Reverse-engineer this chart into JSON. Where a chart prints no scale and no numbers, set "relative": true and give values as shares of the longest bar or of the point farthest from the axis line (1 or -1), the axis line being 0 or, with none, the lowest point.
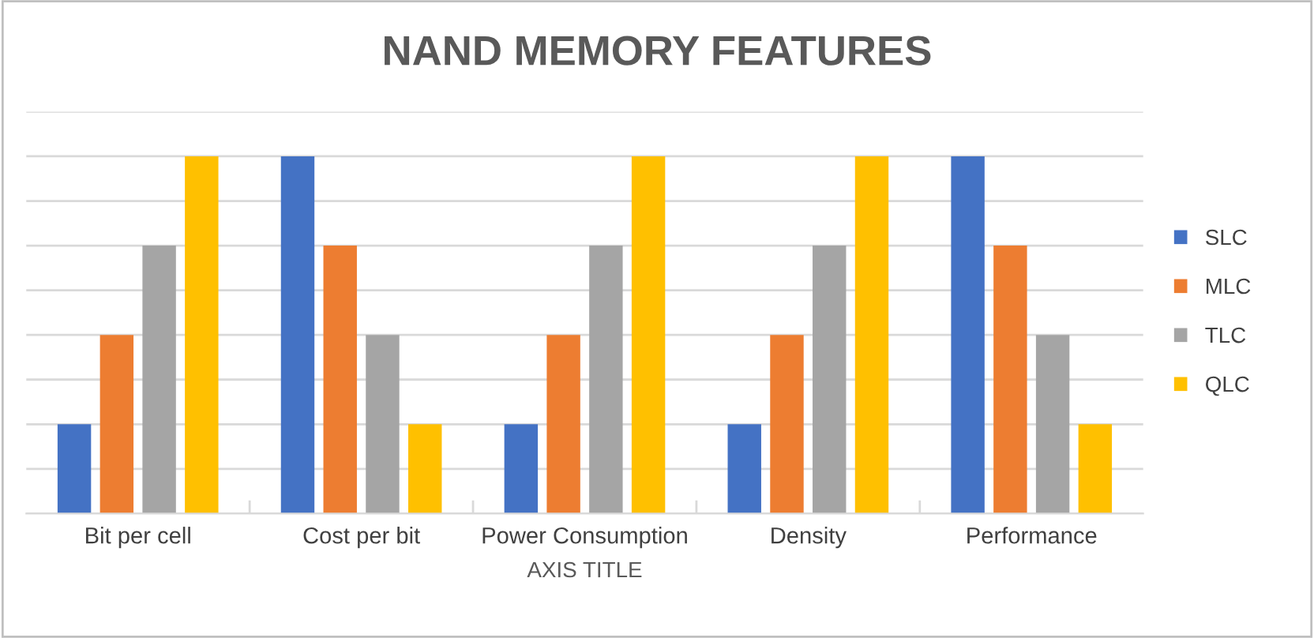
{
  "chart_data": {
    "type": "bar",
    "title": "NAND MEMORY FEATURES",
    "xlabel": "AXIS TITLE",
    "categories": [
      "Bit per cell",
      "Cost per bit",
      "Power Consumption",
      "Density",
      "Performance"
    ],
    "series": [
      {
        "name": "SLC",
        "color": "#4472c4",
        "values": [
          0.25,
          1,
          0.25,
          0.25,
          1
        ]
      },
      {
        "name": "MLC",
        "color": "#ed7d31",
        "values": [
          0.5,
          0.75,
          0.5,
          0.5,
          0.75
        ]
      },
      {
        "name": "TLC",
        "color": "#a5a5a5",
        "values": [
          0.75,
          0.5,
          0.75,
          0.75,
          0.5
        ]
      },
      {
        "name": "QLC",
        "color": "#ffc000",
        "values": [
          1,
          0.25,
          1,
          1,
          0.25
        ]
      }
    ],
    "relative": true,
    "grid": "y",
    "legend": "right"
  }
}
